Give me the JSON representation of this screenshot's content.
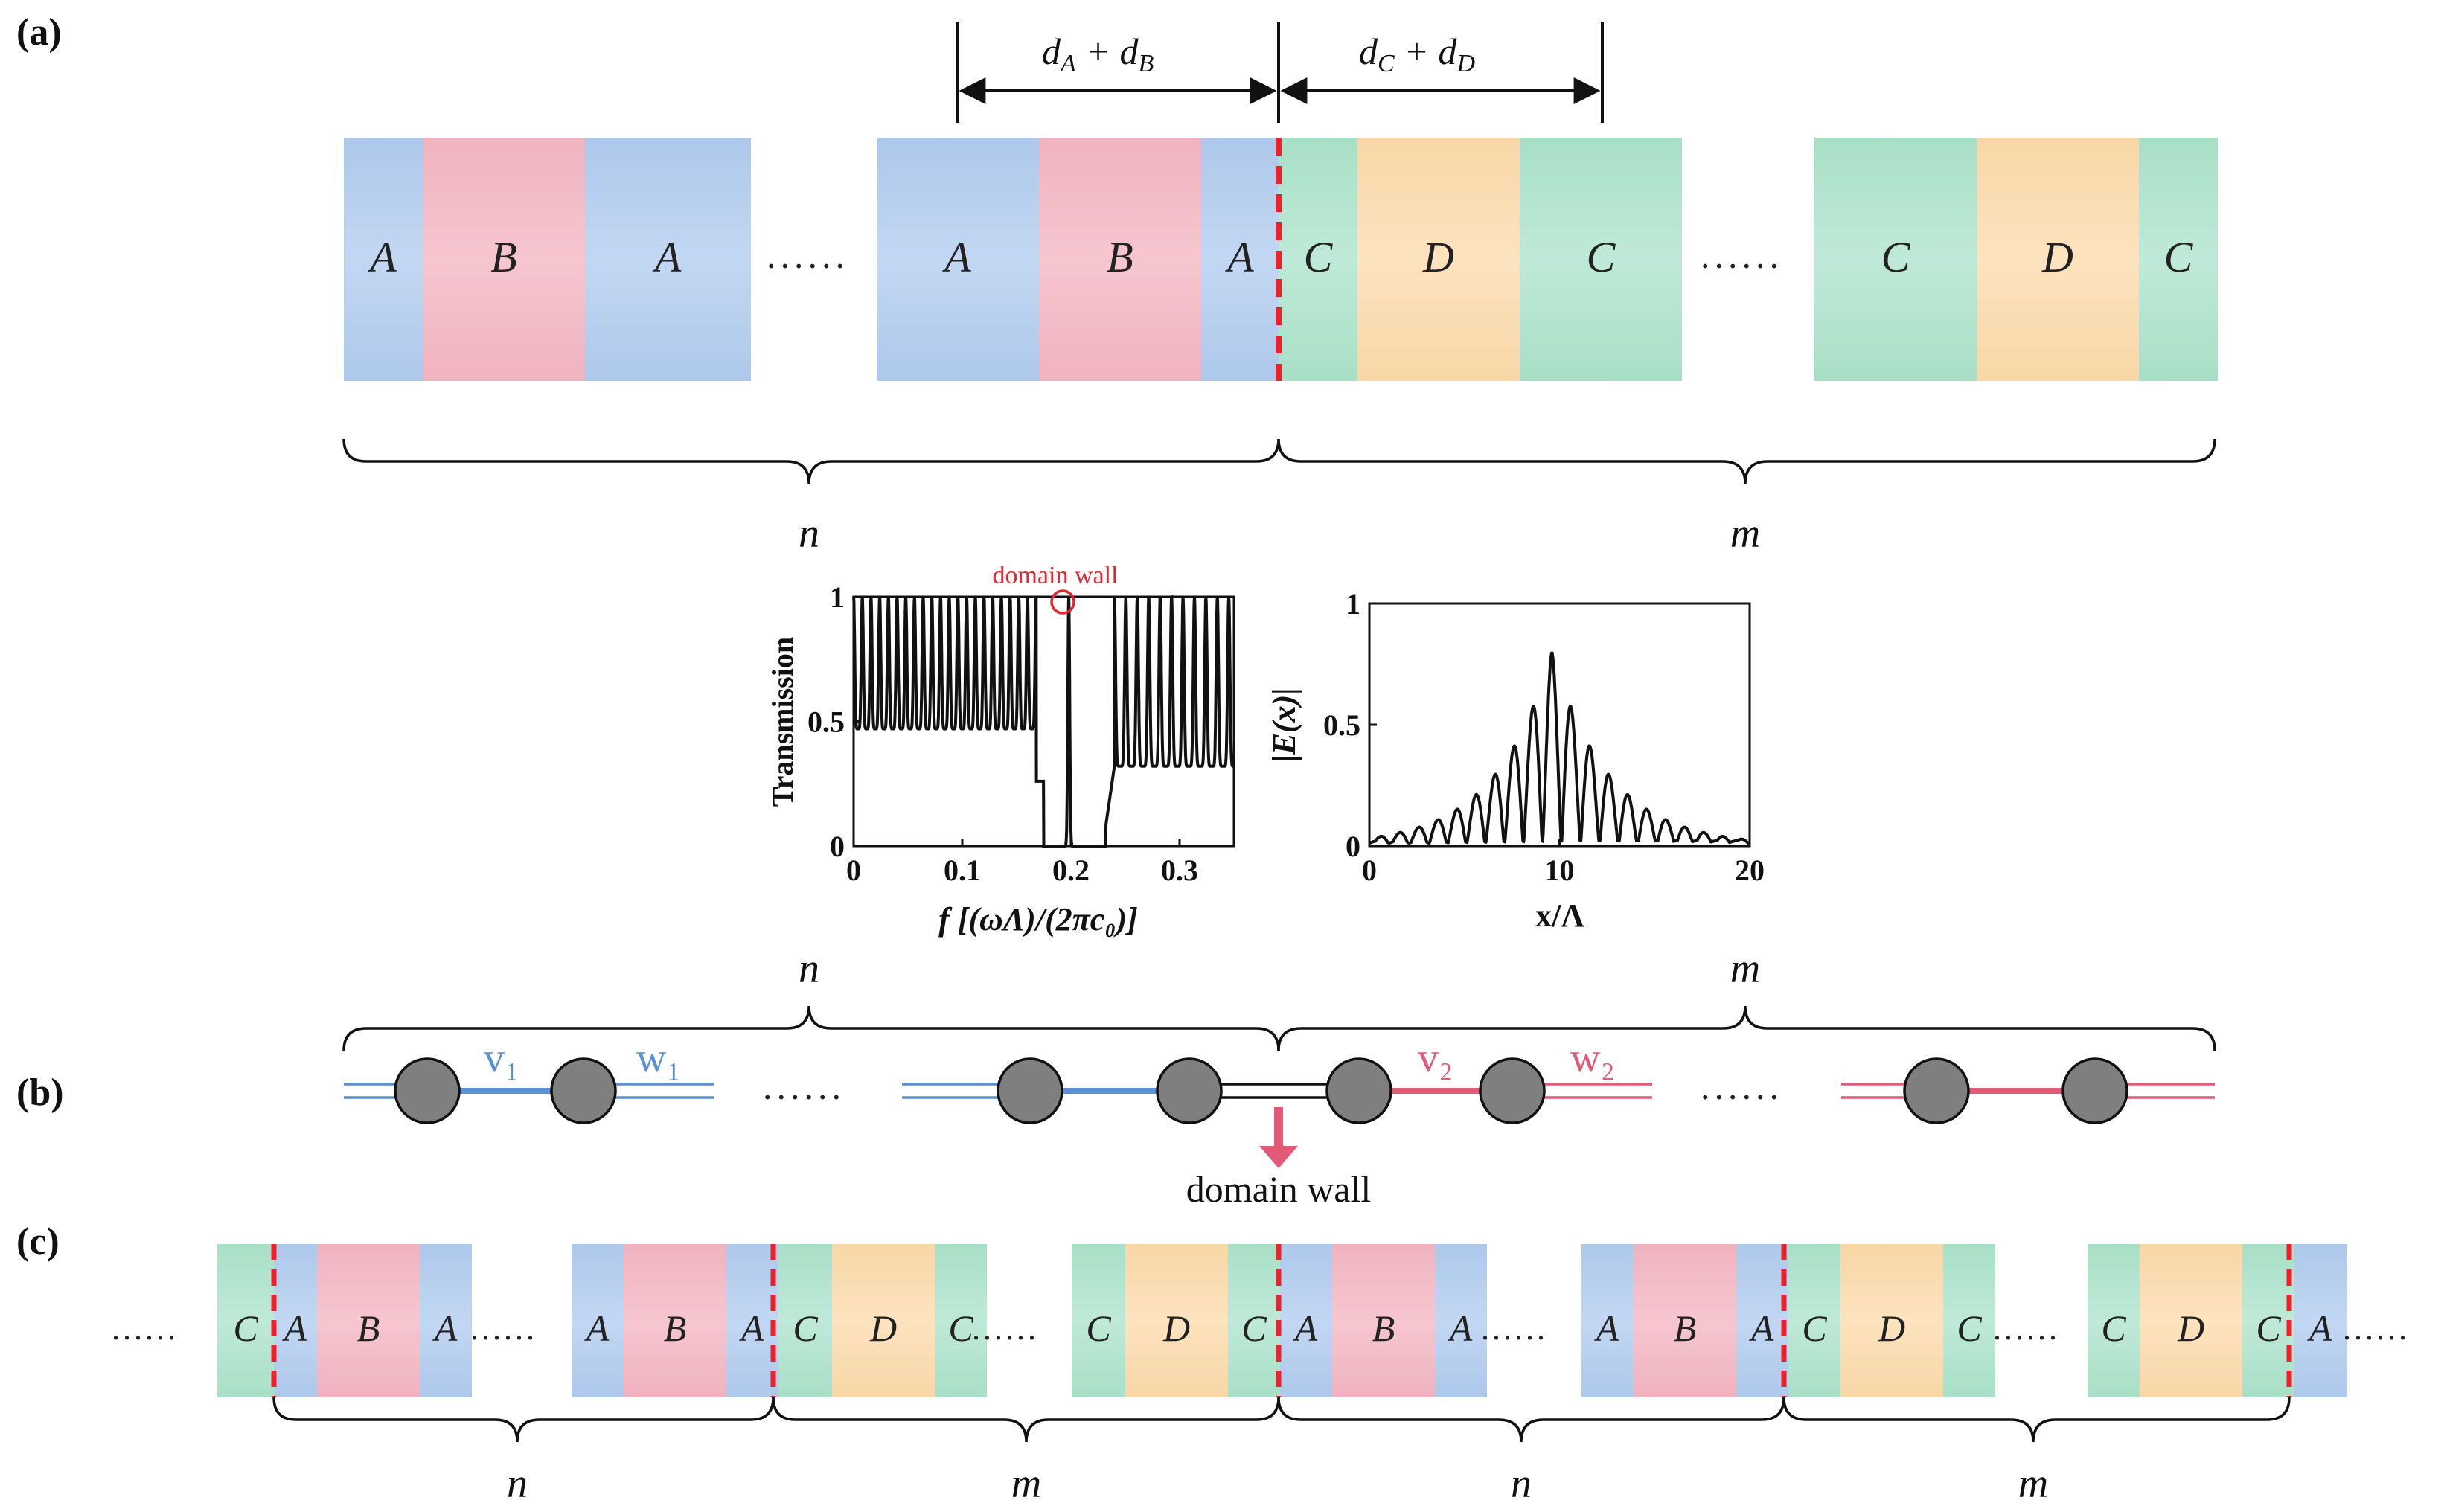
{
  "colors": {
    "A": "#bcd3ef",
    "B": "#f2bcc6",
    "C": "#b6e5d2",
    "D": "#fbdeb4",
    "blue_line": "#5b8fd6",
    "red_line": "#e35a78",
    "node_fill": "#7f7f7f",
    "wall": "#e8232d",
    "annot_red": "#e32530"
  },
  "panel_a": {
    "label": "(a)",
    "dim_AB": "d_A + d_B",
    "dim_CD": "d_C + d_D",
    "dots": "......",
    "brace_n": "n",
    "brace_m": "m",
    "groups": [
      [
        "A",
        "B",
        "A"
      ],
      [
        "A",
        "B",
        "A"
      ],
      [
        "C",
        "D",
        "C"
      ],
      [
        "C",
        "D",
        "C"
      ]
    ]
  },
  "plot_transmission": {
    "ylabel": "Transmission",
    "xlabel": "f [(ωΛ)/(2πc₀)]",
    "xticks": [
      "0",
      "0.1",
      "0.2",
      "0.3"
    ],
    "yticks": [
      "0",
      "0.5",
      "1"
    ],
    "annotation": "domain wall"
  },
  "plot_field": {
    "ylabel": "|E(x)|",
    "xlabel": "x/Λ",
    "xticks": [
      "0",
      "10",
      "20"
    ],
    "yticks": [
      "0",
      "0.5",
      "1"
    ]
  },
  "panel_b": {
    "label": "(b)",
    "brace_n": "n",
    "brace_m": "m",
    "v1": "v₁",
    "w1": "w₁",
    "v2": "v₂",
    "w2": "w₂",
    "dots": "......",
    "wall_label": "domain wall"
  },
  "panel_c": {
    "label": "(c)",
    "dots": "......",
    "braces": [
      "n",
      "m",
      "n",
      "m"
    ],
    "groups": [
      [
        "C",
        "A",
        "B",
        "A"
      ],
      [
        "A",
        "B",
        "A",
        "C",
        "D",
        "C"
      ],
      [
        "C",
        "D",
        "C",
        "A",
        "B",
        "A"
      ],
      [
        "A",
        "B",
        "A",
        "C",
        "D",
        "C"
      ],
      [
        "C",
        "D",
        "C",
        "A"
      ]
    ]
  }
}
